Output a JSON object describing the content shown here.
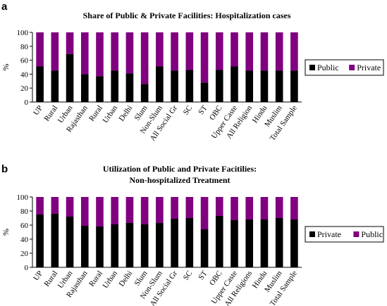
{
  "chart_data": [
    {
      "panel_letter": "a",
      "type": "bar",
      "stacked": true,
      "title_lines": [
        "Share of Public & Private Facilities: Hospitalization cases"
      ],
      "ylabel": "%",
      "ylim": [
        0,
        100
      ],
      "yticks": [
        0,
        20,
        40,
        60,
        80,
        100
      ],
      "categories": [
        "UP",
        "Rural",
        "Urban",
        "Rajasthan",
        "Rural",
        "Urban",
        "Delhi",
        "Slum",
        "Non-Slum",
        "All Social Gr",
        "SC",
        "ST",
        "OBC",
        "Upper Caste",
        "All Religion",
        "Hindu",
        "Muslim",
        "Total Sample"
      ],
      "series": [
        {
          "name": "Public",
          "color": "#000000",
          "values": [
            51,
            45,
            69,
            40,
            37,
            45,
            41,
            26,
            51,
            45,
            46,
            28,
            46,
            51,
            45,
            45,
            45,
            45
          ]
        },
        {
          "name": "Private",
          "color": "#800080",
          "values": [
            49,
            55,
            31,
            60,
            63,
            55,
            59,
            74,
            49,
            55,
            54,
            72,
            54,
            49,
            55,
            55,
            55,
            55
          ]
        }
      ],
      "legend_position": "right"
    },
    {
      "panel_letter": "b",
      "type": "bar",
      "stacked": true,
      "title_lines": [
        "Utilization of Public and Private Facitilies:",
        "Non-hospitalized Treatment"
      ],
      "ylabel": "%",
      "ylim": [
        0,
        100
      ],
      "yticks": [
        0,
        20,
        40,
        60,
        80,
        100
      ],
      "categories": [
        "UP",
        "Rural",
        "Urban",
        "Rajasthan",
        "Rural",
        "Urban",
        "Delhi",
        "Slum",
        "Non-Slum",
        "All Social Gr",
        "SC",
        "ST",
        "OBC",
        "Upper Caste",
        "All Religions",
        "Hindu",
        "Muslim",
        "Total Sample"
      ],
      "series": [
        {
          "name": "Private",
          "color": "#000000",
          "values": [
            75,
            76,
            72,
            59,
            58,
            61,
            63,
            61,
            63,
            69,
            70,
            54,
            73,
            67,
            68,
            68,
            70,
            68
          ]
        },
        {
          "name": "Public",
          "color": "#800080",
          "values": [
            25,
            24,
            28,
            41,
            42,
            39,
            37,
            39,
            37,
            31,
            30,
            46,
            27,
            33,
            32,
            32,
            30,
            32
          ]
        }
      ],
      "legend_position": "right"
    }
  ]
}
